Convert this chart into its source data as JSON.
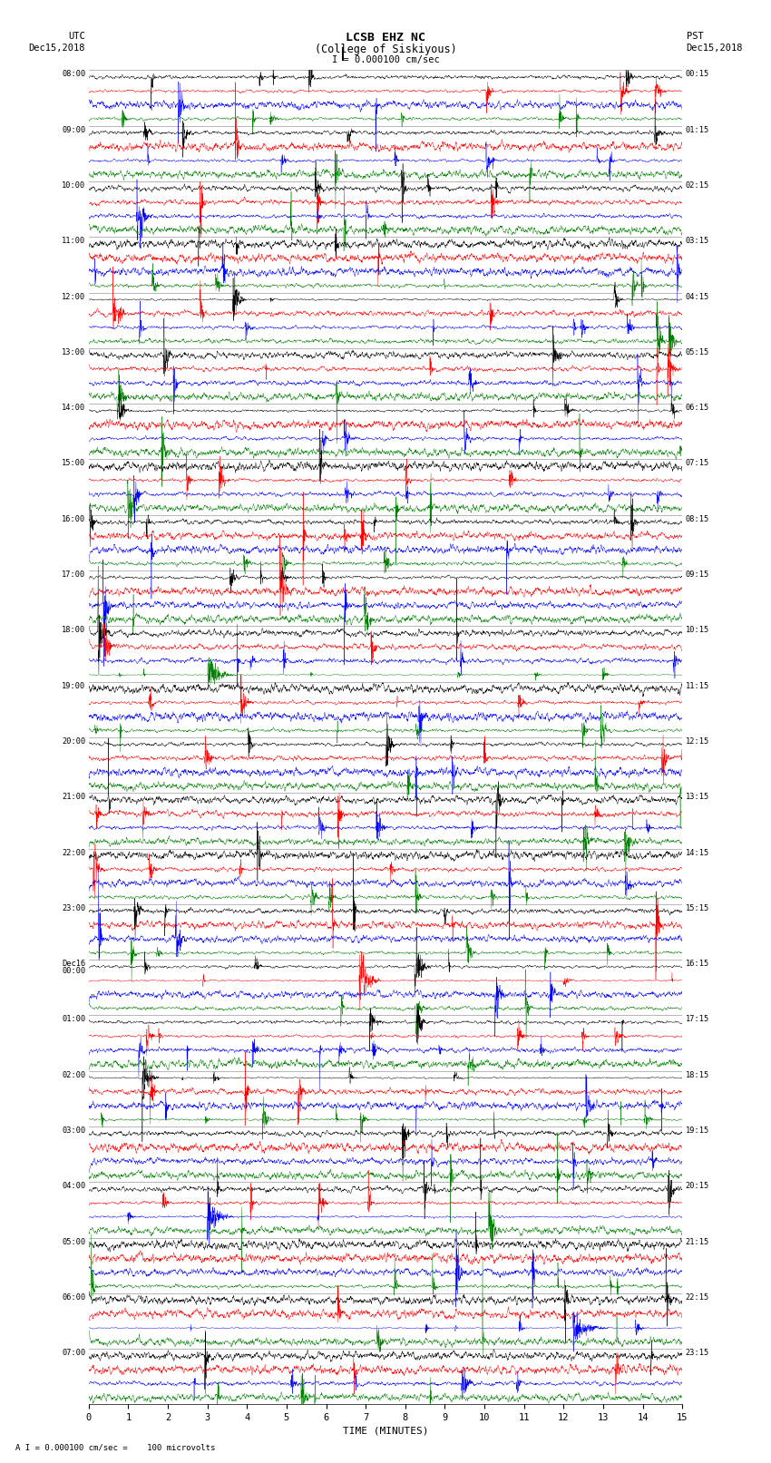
{
  "title_line1": "LCSB EHZ NC",
  "title_line2": "(College of Siskiyous)",
  "title_line3": "I = 0.000100 cm/sec",
  "left_header_line1": "UTC",
  "left_header_line2": "Dec15,2018",
  "right_header_line1": "PST",
  "right_header_line2": "Dec15,2018",
  "xlabel": "TIME (MINUTES)",
  "footer": "A I = 0.000100 cm/sec =    100 microvolts",
  "trace_colors": [
    "black",
    "red",
    "blue",
    "green"
  ],
  "utc_labels": [
    "08:00",
    "09:00",
    "10:00",
    "11:00",
    "12:00",
    "13:00",
    "14:00",
    "15:00",
    "16:00",
    "17:00",
    "18:00",
    "19:00",
    "20:00",
    "21:00",
    "22:00",
    "23:00",
    "Dec16\n00:00",
    "01:00",
    "02:00",
    "03:00",
    "04:00",
    "05:00",
    "06:00",
    "07:00"
  ],
  "pst_labels": [
    "00:15",
    "01:15",
    "02:15",
    "03:15",
    "04:15",
    "05:15",
    "06:15",
    "07:15",
    "08:15",
    "09:15",
    "10:15",
    "11:15",
    "12:15",
    "13:15",
    "14:15",
    "15:15",
    "16:15",
    "17:15",
    "18:15",
    "19:15",
    "20:15",
    "21:15",
    "22:15",
    "23:15"
  ],
  "num_traces": 96,
  "traces_per_hour": 4,
  "num_hours": 24,
  "xmin": 0,
  "xmax": 15,
  "background_color": "white",
  "seed": 12345
}
